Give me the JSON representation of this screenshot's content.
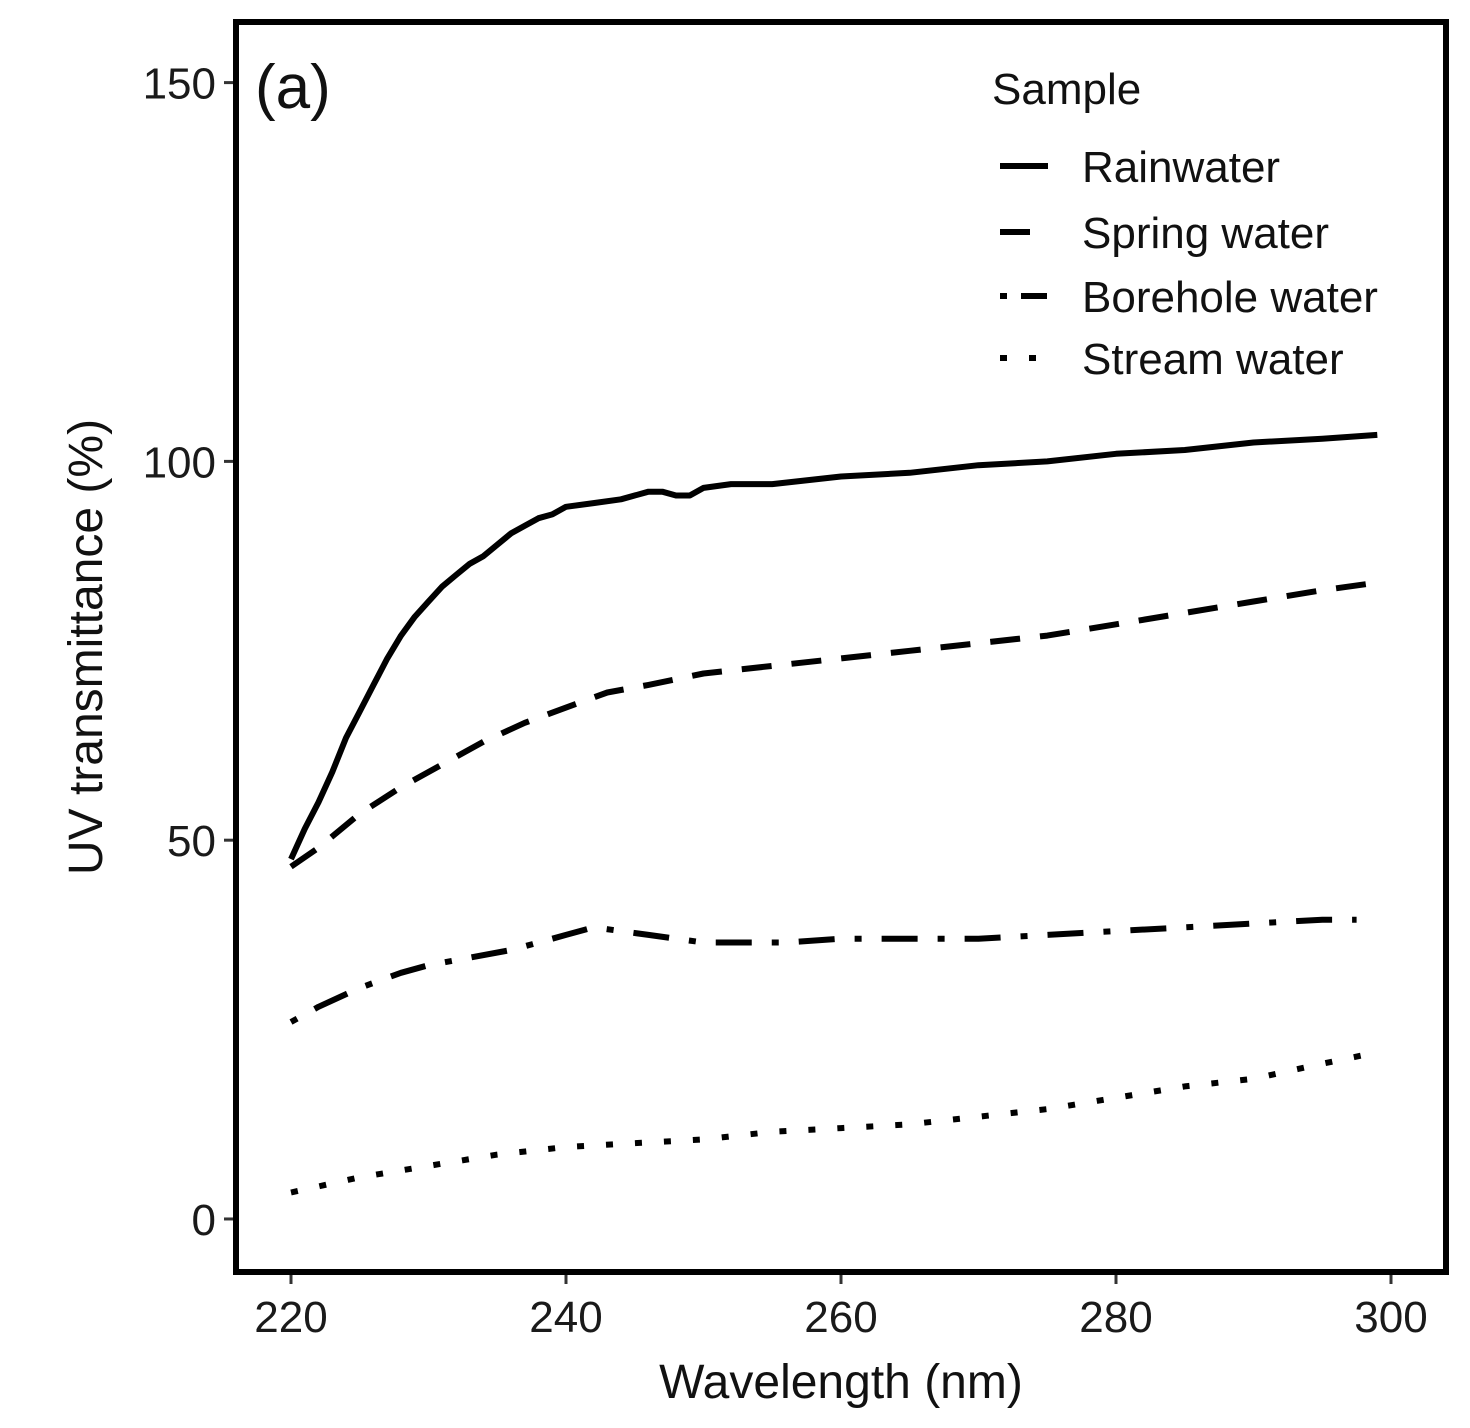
{
  "chart_data": {
    "type": "line",
    "panel_label": "(a)",
    "xlabel": "Wavelength (nm)",
    "ylabel": "UV transmittance (%)",
    "xlim": [
      216,
      304
    ],
    "ylim": [
      -7,
      158
    ],
    "xticks": [
      220,
      240,
      260,
      280,
      300
    ],
    "yticks": [
      0,
      50,
      100,
      150
    ],
    "grid": false,
    "legend": {
      "title": "Sample",
      "position": "top-right"
    },
    "colors": {
      "line": "#000000",
      "frame": "#000000",
      "background": "#ffffff"
    },
    "series": [
      {
        "name": "Rainwater",
        "style": "solid",
        "x": [
          220,
          221,
          222,
          223,
          224,
          225,
          226,
          227,
          228,
          229,
          230,
          231,
          232,
          233,
          234,
          235,
          236,
          237,
          238,
          239,
          240,
          242,
          244,
          246,
          247,
          248,
          249,
          250,
          252,
          255,
          260,
          265,
          270,
          275,
          280,
          285,
          290,
          295,
          299
        ],
        "y": [
          47.5,
          51.5,
          55,
          59,
          63.5,
          67,
          70.5,
          74,
          77,
          79.5,
          81.5,
          83.5,
          85,
          86.5,
          87.5,
          89,
          90.5,
          91.5,
          92.5,
          93,
          94,
          94.5,
          95,
          96,
          96,
          95.5,
          95.5,
          96.5,
          97,
          97,
          98,
          98.5,
          99.5,
          100,
          101,
          101.5,
          102.5,
          103,
          103.5
        ]
      },
      {
        "name": "Spring water",
        "style": "dashed",
        "x": [
          220,
          222,
          225,
          228,
          231,
          234,
          237,
          240,
          243,
          246,
          250,
          255,
          260,
          265,
          270,
          275,
          280,
          285,
          290,
          295,
          299
        ],
        "y": [
          46.5,
          49,
          53.5,
          57,
          60,
          63,
          65.5,
          67.5,
          69.5,
          70.5,
          72,
          73,
          74,
          75,
          76,
          77,
          78.5,
          80,
          81.5,
          83,
          84
        ]
      },
      {
        "name": "Borehole water",
        "style": "dotdash",
        "x": [
          220,
          222,
          225,
          228,
          230,
          233,
          236,
          238,
          240,
          242,
          244,
          246,
          248,
          250,
          253,
          256,
          260,
          265,
          270,
          275,
          280,
          285,
          290,
          295,
          297.5
        ],
        "y": [
          26,
          28,
          30.5,
          32.5,
          33.5,
          34.5,
          35.5,
          36.5,
          37.5,
          38.5,
          38,
          37.5,
          37,
          36.5,
          36.5,
          36.5,
          37,
          37,
          37,
          37.5,
          38,
          38.5,
          39,
          39.5,
          39.5
        ]
      },
      {
        "name": "Stream water",
        "style": "dotted",
        "x": [
          220,
          225,
          230,
          235,
          240,
          245,
          250,
          255,
          260,
          265,
          270,
          275,
          280,
          285,
          290,
          295,
          299
        ],
        "y": [
          3.5,
          5.5,
          7,
          8.5,
          9.5,
          10,
          10.5,
          11.5,
          12,
          12.5,
          13.5,
          14.5,
          16,
          17.5,
          18.5,
          20.5,
          22
        ]
      }
    ]
  }
}
